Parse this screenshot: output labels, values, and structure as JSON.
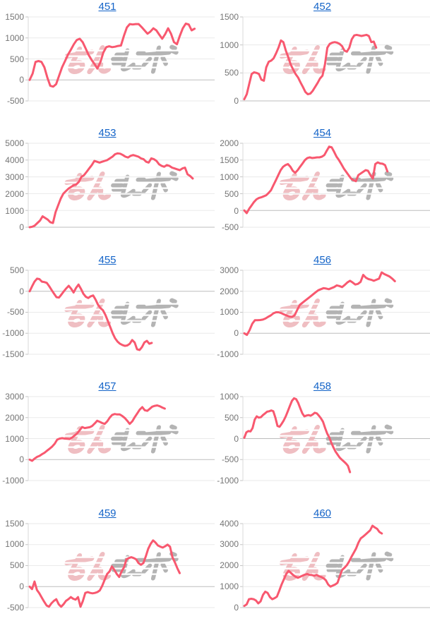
{
  "page": {
    "background": "#ffffff"
  },
  "colors": {
    "line": "#f8586f",
    "link": "#1464c8",
    "grid": "#eaeaea",
    "zero_grid": "#bdbdbd",
    "axis": "#d9d9d9",
    "tick": "#c4c4c4",
    "tick_label": "#757575",
    "watermark_pink": "#edb3b8",
    "watermark_gray": "#a8a8a8"
  },
  "watermark": {
    "text": "みんレポ"
  },
  "chart_data": [
    {
      "type": "line",
      "title": "451",
      "ylabel": "",
      "ylim": [
        -500,
        1500
      ],
      "yticks": [
        "1500",
        "1000",
        "500",
        "0",
        "-500"
      ],
      "x_end_frac": 0.9,
      "values": [
        0,
        150,
        430,
        450,
        430,
        300,
        60,
        -140,
        -160,
        -100,
        100,
        300,
        450,
        600,
        720,
        850,
        950,
        980,
        900,
        750,
        600,
        480,
        380,
        270,
        420,
        650,
        780,
        800,
        780,
        790,
        810,
        820,
        1050,
        1250,
        1330,
        1320,
        1330,
        1330,
        1260,
        1180,
        1100,
        1150,
        1230,
        1180,
        1080,
        980,
        1090,
        1230,
        1100,
        900,
        850,
        1050,
        1230,
        1340,
        1320,
        1180,
        1220
      ]
    },
    {
      "type": "line",
      "title": "452",
      "ylabel": "",
      "ylim": [
        0,
        1500
      ],
      "yticks": [
        "1500",
        "1000",
        "500",
        "0"
      ],
      "x_end_frac": 0.72,
      "values": [
        30,
        120,
        300,
        480,
        510,
        500,
        480,
        380,
        360,
        600,
        700,
        720,
        760,
        850,
        950,
        1080,
        1050,
        900,
        780,
        650,
        560,
        480,
        420,
        330,
        250,
        160,
        120,
        130,
        180,
        250,
        320,
        400,
        450,
        650,
        950,
        1020,
        1040,
        1050,
        1040,
        1020,
        980,
        900,
        880,
        950,
        1100,
        1170,
        1180,
        1170,
        1160,
        1170,
        1180,
        1160,
        1050,
        1060,
        950
      ]
    },
    {
      "type": "line",
      "title": "453",
      "ylabel": "",
      "ylim": [
        0,
        5000
      ],
      "yticks": [
        "5000",
        "4000",
        "3000",
        "2000",
        "1000",
        "0"
      ],
      "x_end_frac": 0.89,
      "values": [
        0,
        30,
        100,
        250,
        400,
        650,
        550,
        450,
        300,
        250,
        900,
        1300,
        1700,
        2000,
        2150,
        2300,
        2400,
        2500,
        2550,
        2700,
        3000,
        3100,
        3300,
        3500,
        3700,
        3950,
        3900,
        3850,
        3900,
        3950,
        4000,
        4100,
        4200,
        4350,
        4400,
        4380,
        4300,
        4200,
        4150,
        4250,
        4300,
        4250,
        4200,
        4100,
        4050,
        3900,
        3850,
        4100,
        4050,
        3950,
        3750,
        3650,
        3600,
        3700,
        3650,
        3550,
        3500,
        3450,
        3400,
        3500,
        3550,
        3150,
        3050,
        2900
      ]
    },
    {
      "type": "line",
      "title": "454",
      "ylabel": "",
      "ylim": [
        -500,
        2000
      ],
      "yticks": [
        "2000",
        "1500",
        "1000",
        "500",
        "0",
        "-500"
      ],
      "x_end_frac": 0.78,
      "values": [
        0,
        -80,
        50,
        150,
        250,
        330,
        370,
        390,
        420,
        450,
        520,
        600,
        750,
        900,
        1050,
        1200,
        1300,
        1350,
        1380,
        1300,
        1180,
        1120,
        1200,
        1300,
        1400,
        1500,
        1560,
        1580,
        1560,
        1570,
        1580,
        1580,
        1600,
        1650,
        1780,
        1900,
        1880,
        1750,
        1600,
        1500,
        1380,
        1250,
        1150,
        1050,
        950,
        900,
        870,
        1050,
        1100,
        1150,
        1200,
        1180,
        1050,
        950,
        1380,
        1430,
        1400,
        1390,
        1350,
        1160
      ]
    },
    {
      "type": "line",
      "title": "455",
      "ylabel": "",
      "ylim": [
        -1500,
        500
      ],
      "yticks": [
        "500",
        "0",
        "-500",
        "-1000",
        "-1500"
      ],
      "x_end_frac": 0.67,
      "values": [
        0,
        120,
        230,
        300,
        290,
        230,
        220,
        200,
        120,
        30,
        -60,
        -140,
        -150,
        -80,
        0,
        70,
        130,
        60,
        -30,
        80,
        160,
        60,
        -60,
        -130,
        -160,
        -120,
        -100,
        -200,
        -320,
        -400,
        -450,
        -560,
        -700,
        -850,
        -1000,
        -1120,
        -1200,
        -1250,
        -1280,
        -1300,
        -1290,
        -1250,
        -1160,
        -1220,
        -1380,
        -1400,
        -1330,
        -1220,
        -1180,
        -1250,
        -1230
      ]
    },
    {
      "type": "line",
      "title": "456",
      "ylabel": "",
      "ylim": [
        -1000,
        3000
      ],
      "yticks": [
        "3000",
        "2000",
        "1000",
        "0",
        "-1000"
      ],
      "x_end_frac": 0.82,
      "values": [
        0,
        -80,
        150,
        450,
        620,
        620,
        630,
        650,
        700,
        780,
        850,
        950,
        1000,
        1000,
        960,
        900,
        850,
        800,
        780,
        850,
        1100,
        1350,
        1450,
        1550,
        1650,
        1750,
        1850,
        1950,
        2050,
        2100,
        2150,
        2130,
        2100,
        2150,
        2200,
        2280,
        2250,
        2200,
        2300,
        2420,
        2500,
        2420,
        2320,
        2350,
        2450,
        2780,
        2650,
        2580,
        2550,
        2500,
        2550,
        2600,
        2900,
        2820,
        2760,
        2700,
        2600,
        2480
      ]
    },
    {
      "type": "line",
      "title": "457",
      "ylabel": "",
      "ylim": [
        -1000,
        3000
      ],
      "yticks": [
        "3000",
        "2000",
        "1000",
        "0",
        "-1000"
      ],
      "x_end_frac": 0.74,
      "values": [
        0,
        -60,
        50,
        130,
        180,
        260,
        330,
        430,
        520,
        620,
        750,
        950,
        1000,
        1020,
        1000,
        990,
        980,
        1050,
        1150,
        1250,
        1400,
        1550,
        1500,
        1520,
        1540,
        1600,
        1720,
        1850,
        1800,
        1740,
        1700,
        1820,
        2000,
        2130,
        2170,
        2150,
        2150,
        2080,
        1980,
        1850,
        1700,
        1820,
        2020,
        2200,
        2380,
        2500,
        2350,
        2320,
        2420,
        2520,
        2560,
        2580,
        2540,
        2480,
        2430
      ]
    },
    {
      "type": "line",
      "title": "458",
      "ylabel": "",
      "ylim": [
        -1000,
        1000
      ],
      "yticks": [
        "1000",
        "500",
        "0",
        "-500",
        "-1000"
      ],
      "x_end_frac": 0.58,
      "values": [
        20,
        150,
        180,
        170,
        250,
        450,
        530,
        500,
        510,
        560,
        600,
        640,
        650,
        670,
        650,
        500,
        300,
        280,
        350,
        430,
        530,
        650,
        780,
        900,
        960,
        940,
        850,
        720,
        600,
        530,
        550,
        560,
        545,
        575,
        615,
        600,
        545,
        480,
        400,
        250,
        120,
        30,
        -100,
        -210,
        -310,
        -380,
        -450,
        -500,
        -545,
        -590,
        -650,
        -800
      ]
    },
    {
      "type": "line",
      "title": "459",
      "ylabel": "",
      "ylim": [
        -500,
        1500
      ],
      "yticks": [
        "1500",
        "1000",
        "500",
        "0",
        "-500"
      ],
      "x_end_frac": 0.82,
      "values": [
        0,
        -60,
        120,
        -80,
        -160,
        -260,
        -360,
        -450,
        -480,
        -400,
        -340,
        -300,
        -420,
        -480,
        -420,
        -340,
        -300,
        -250,
        -290,
        -310,
        -250,
        -480,
        -340,
        -150,
        -130,
        -150,
        -160,
        -150,
        -130,
        -90,
        20,
        160,
        300,
        360,
        480,
        400,
        300,
        230,
        360,
        460,
        650,
        680,
        700,
        680,
        650,
        560,
        520,
        560,
        720,
        900,
        1020,
        1100,
        1050,
        980,
        950,
        930,
        960,
        1000,
        950,
        700,
        580,
        440,
        320
      ]
    },
    {
      "type": "line",
      "title": "460",
      "ylabel": "",
      "ylim": [
        0,
        4000
      ],
      "yticks": [
        "4000",
        "3000",
        "2000",
        "1000",
        "0"
      ],
      "x_end_frac": 0.75,
      "values": [
        80,
        150,
        400,
        420,
        400,
        340,
        200,
        300,
        600,
        760,
        700,
        500,
        400,
        450,
        520,
        800,
        1100,
        1350,
        1600,
        1750,
        1650,
        1550,
        1470,
        1420,
        1470,
        1520,
        1570,
        1600,
        1560,
        1550,
        1520,
        1560,
        1500,
        1460,
        1400,
        1300,
        1100,
        1000,
        1050,
        1100,
        1180,
        1500,
        1800,
        1900,
        2020,
        2200,
        2420,
        2620,
        2820,
        3100,
        3300,
        3380,
        3480,
        3580,
        3680,
        3900,
        3820,
        3750,
        3600,
        3530
      ]
    }
  ]
}
